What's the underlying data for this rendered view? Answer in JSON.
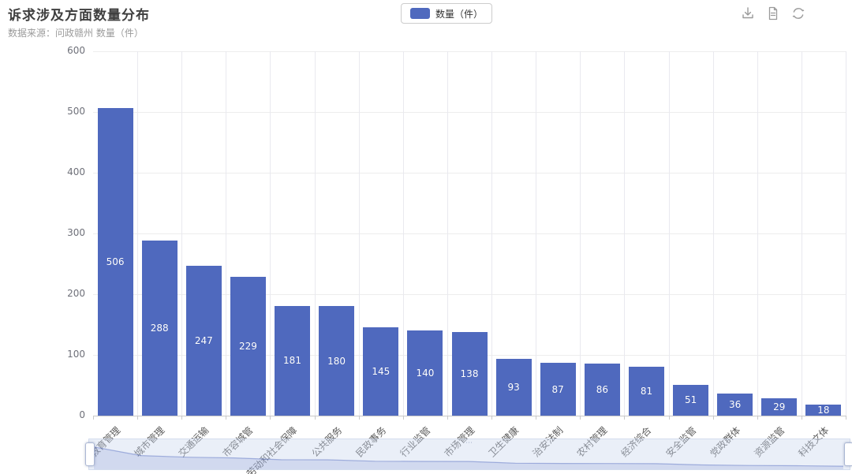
{
  "header": {
    "title": "诉求涉及方面数量分布",
    "subtitle": "数据来源：问政赣州  数量（件）"
  },
  "legend": {
    "label": "数量（件）"
  },
  "toolbar": {
    "icons": [
      "download-icon",
      "data-view-icon",
      "refresh-icon"
    ]
  },
  "colors": {
    "bar": "#4f69be",
    "bar_label": "#ffffff",
    "axis_line": "#c9c9c9",
    "grid_line": "#ededed",
    "datazoom_fill": "#d6e0f3"
  },
  "chart_data": {
    "type": "bar",
    "title": "诉求涉及方面数量分布",
    "source_note": "数据来源：问政赣州",
    "series_name": "数量（件）",
    "categories": [
      "教育管理",
      "城市管理",
      "交通运输",
      "市容城管",
      "劳动和社会保障",
      "公共服务",
      "民政事务",
      "行业监管",
      "市场管理",
      "卫生健康",
      "治安法制",
      "农村管理",
      "经济综合",
      "安全监管",
      "党政群体",
      "资源监管",
      "科技文体"
    ],
    "values": [
      506,
      288,
      247,
      229,
      181,
      180,
      145,
      140,
      138,
      93,
      87,
      86,
      81,
      51,
      36,
      29,
      18
    ],
    "xlabel": "",
    "ylabel": "",
    "ylim": [
      0,
      600
    ],
    "y_ticks": [
      0,
      100,
      200,
      300,
      400,
      500,
      600
    ],
    "grid": true,
    "legend_position": "top",
    "bar_color": "#4f69be",
    "label_position": "inside"
  }
}
